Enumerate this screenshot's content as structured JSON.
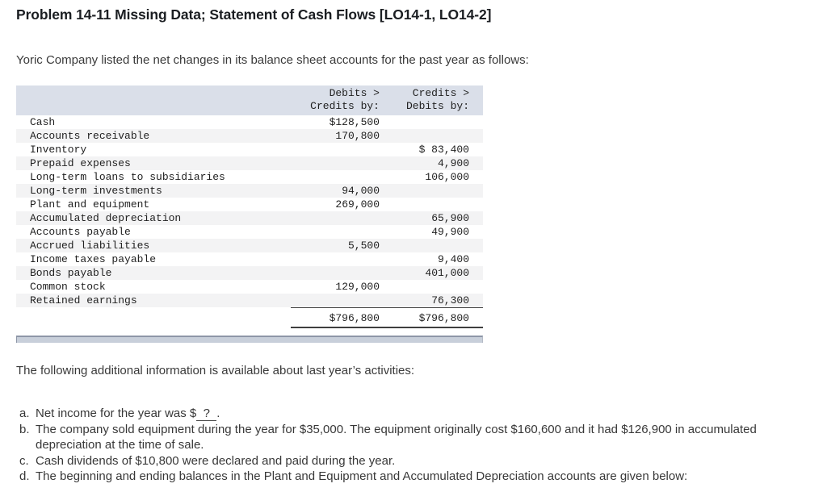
{
  "title": "Problem 14-11 Missing Data; Statement of Cash Flows [LO14-1, LO14-2]",
  "intro": "Yoric Company listed the net changes in its balance sheet accounts for the past year as follows:",
  "table": {
    "header": {
      "col1_line1": "Debits >",
      "col1_line2": "Credits by:",
      "col2_line1": "Credits >",
      "col2_line2": "Debits by:"
    },
    "rows": [
      {
        "label": "Cash",
        "debit": "$128,500",
        "credit": ""
      },
      {
        "label": "Accounts receivable",
        "debit": "170,800",
        "credit": ""
      },
      {
        "label": "Inventory",
        "debit": "",
        "credit": "$ 83,400"
      },
      {
        "label": "Prepaid expenses",
        "debit": "",
        "credit": "4,900"
      },
      {
        "label": "Long-term loans to subsidiaries",
        "debit": "",
        "credit": "106,000"
      },
      {
        "label": "Long-term investments",
        "debit": "94,000",
        "credit": ""
      },
      {
        "label": "Plant and equipment",
        "debit": "269,000",
        "credit": ""
      },
      {
        "label": "Accumulated depreciation",
        "debit": "",
        "credit": "65,900"
      },
      {
        "label": "Accounts payable",
        "debit": "",
        "credit": "49,900"
      },
      {
        "label": "Accrued liabilities",
        "debit": "5,500",
        "credit": ""
      },
      {
        "label": "Income taxes payable",
        "debit": "",
        "credit": "9,400"
      },
      {
        "label": "Bonds payable",
        "debit": "",
        "credit": "401,000"
      },
      {
        "label": "Common stock",
        "debit": "129,000",
        "credit": ""
      },
      {
        "label": "Retained earnings",
        "debit": "",
        "credit": "76,300"
      }
    ],
    "totals": {
      "debit": "$796,800",
      "credit": "$796,800"
    }
  },
  "additional_info": "The following additional information is available about last year’s activities:",
  "notes": {
    "a": {
      "marker": "a.",
      "prefix": "Net income for the year was $",
      "blank": "  ?  ",
      "suffix": "."
    },
    "b": {
      "marker": "b.",
      "text": "The company sold equipment during the year for $35,000. The equipment originally cost $160,600 and it had $126,900 in accumulated depreciation at the time of sale."
    },
    "c": {
      "marker": "c.",
      "text": "Cash dividends of $10,800 were declared and paid during the year."
    },
    "d": {
      "marker": "d.",
      "text": "The beginning and ending balances in the Plant and Equipment and Accumulated Depreciation accounts are given below:"
    }
  },
  "colors": {
    "header_bg": "#dadfe9",
    "stripe_bg": "#f3f3f4",
    "rule_color": "#3f3f3f",
    "scrollbar_fill": "#c8cfda",
    "scrollbar_edge": "#8e96a7",
    "body_text": "#3a3a3a",
    "title_text": "#1b1e22",
    "table_text": "#1f1f1f"
  }
}
